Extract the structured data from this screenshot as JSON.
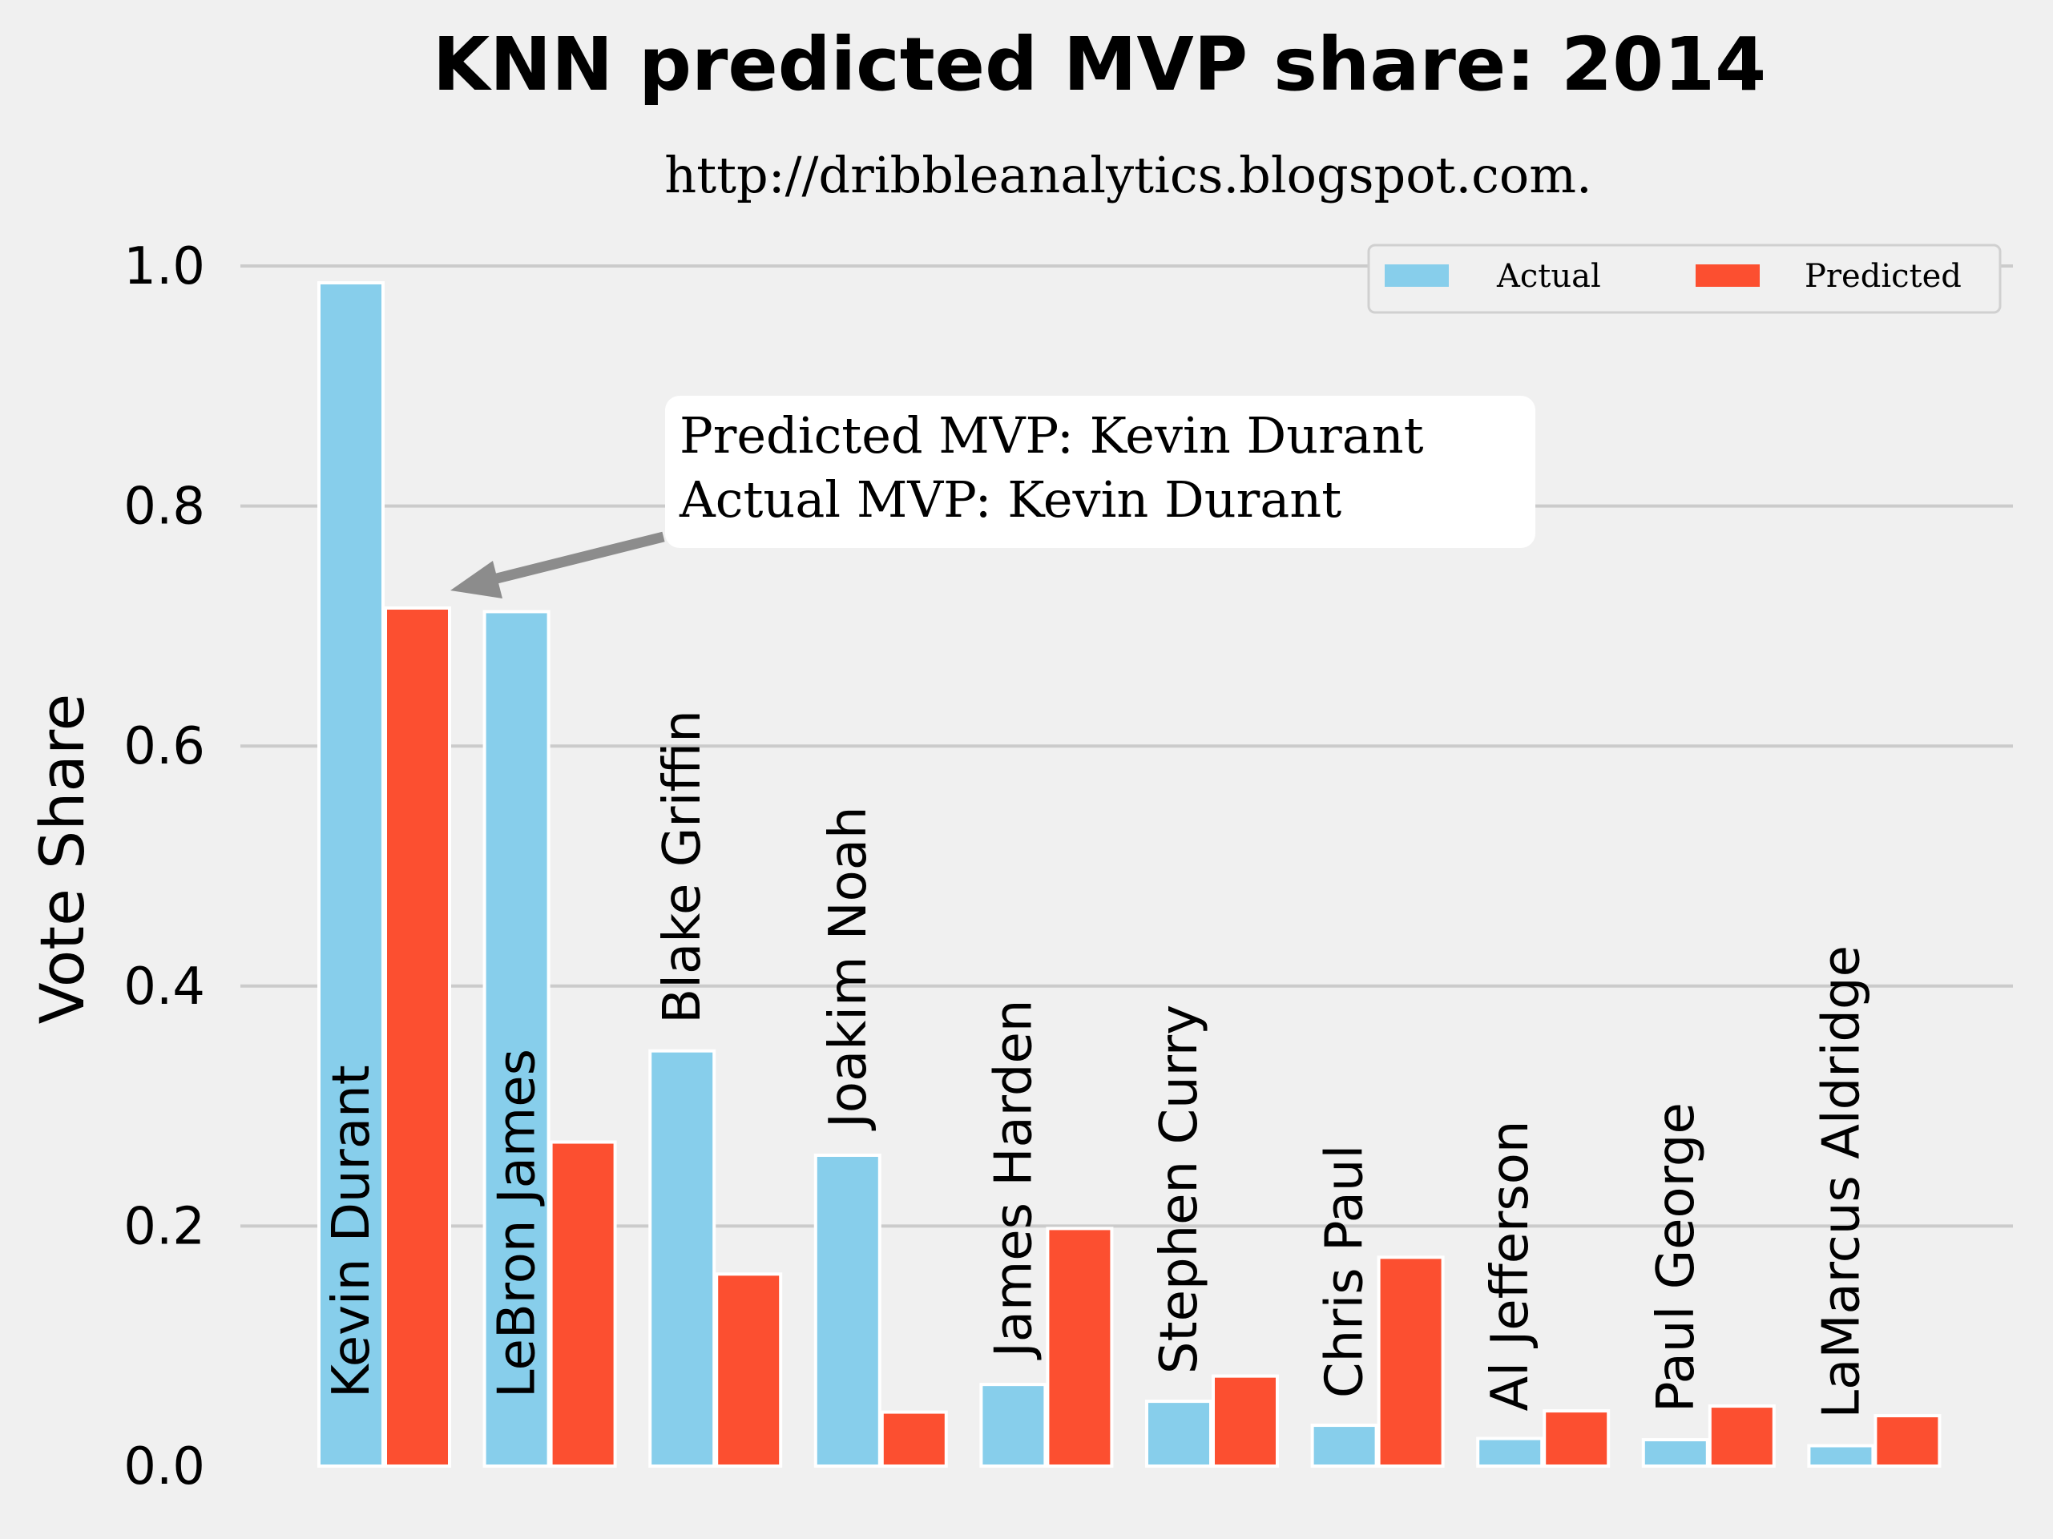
{
  "chart_data": {
    "type": "bar",
    "title": "KNN predicted MVP share: 2014",
    "subtitle": "http://dribbleanalytics.blogspot.com.",
    "xlabel": "",
    "ylabel": "Vote Share",
    "ylim": [
      0,
      1.0
    ],
    "yticks": [
      "0.0",
      "0.2",
      "0.4",
      "0.6",
      "0.8",
      "1.0"
    ],
    "grid": true,
    "legend_position": "top-right",
    "categories": [
      "Kevin Durant",
      "LeBron James",
      "Blake Griffin",
      "Joakim Noah",
      "James Harden",
      "Stephen Curry",
      "Chris Paul",
      "Al Jefferson",
      "Paul George",
      "LaMarcus Aldridge"
    ],
    "series": [
      {
        "name": "Actual",
        "color": "#87ceeb",
        "values": [
          0.986,
          0.712,
          0.346,
          0.259,
          0.068,
          0.054,
          0.034,
          0.023,
          0.022,
          0.017
        ]
      },
      {
        "name": "Predicted",
        "color": "#fc4f30",
        "values": [
          0.715,
          0.27,
          0.16,
          0.045,
          0.198,
          0.075,
          0.174,
          0.046,
          0.05,
          0.042
        ]
      }
    ],
    "annotation": {
      "line1": "Predicted MVP: Kevin Durant",
      "line2": "Actual MVP: Kevin Durant",
      "points_to": "Kevin Durant"
    }
  }
}
